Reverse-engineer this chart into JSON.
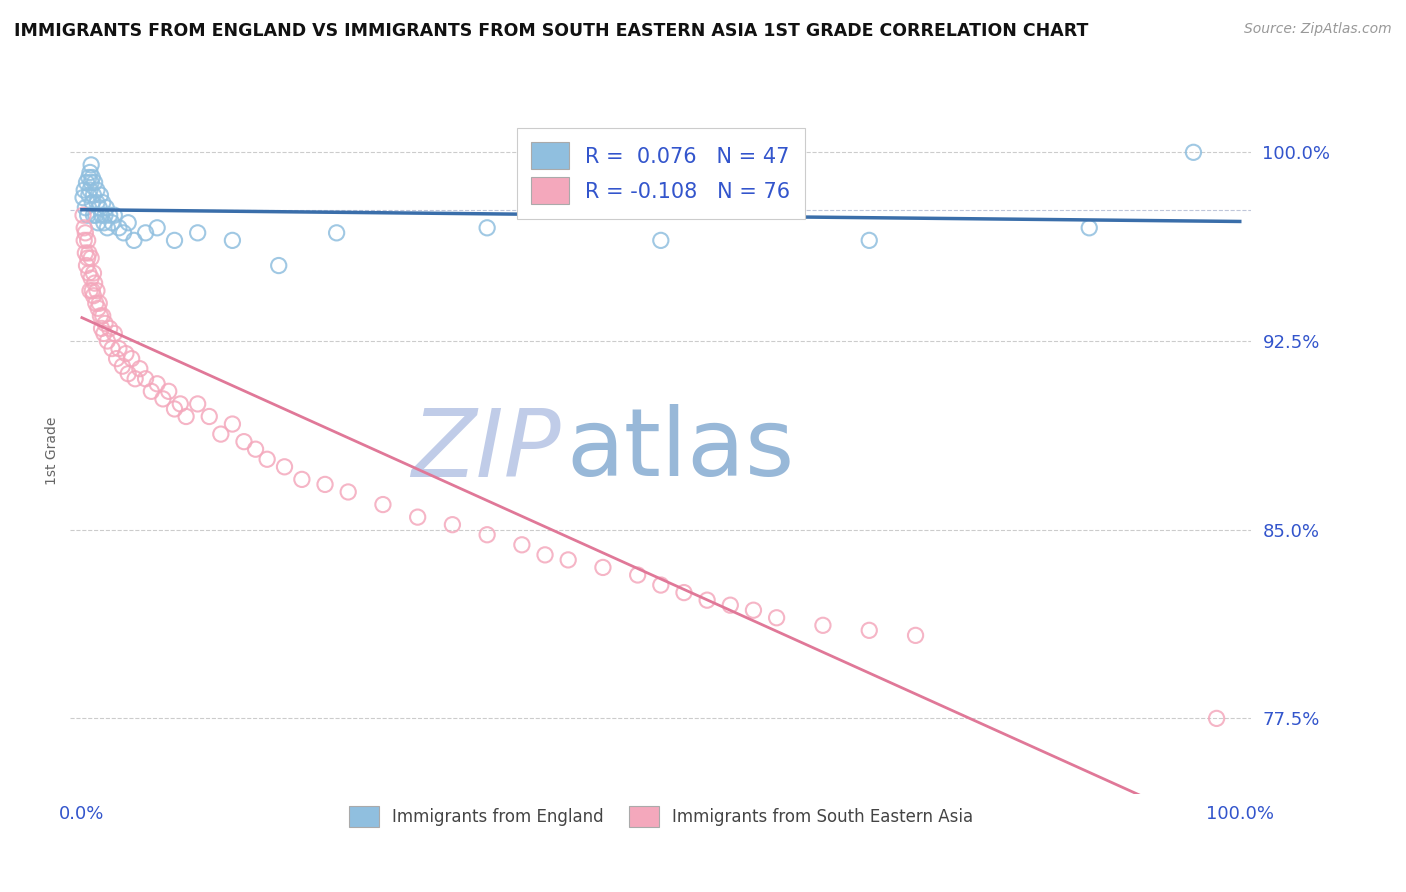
{
  "title": "IMMIGRANTS FROM ENGLAND VS IMMIGRANTS FROM SOUTH EASTERN ASIA 1ST GRADE CORRELATION CHART",
  "source": "Source: ZipAtlas.com",
  "ylabel": "1st Grade",
  "ylim": [
    0.745,
    1.018
  ],
  "xlim": [
    -0.01,
    1.01
  ],
  "yticks": [
    0.775,
    0.85,
    0.925,
    1.0
  ],
  "ytick_labels": [
    "77.5%",
    "85.0%",
    "92.5%",
    "100.0%"
  ],
  "england_R": 0.076,
  "england_N": 47,
  "sea_R": -0.108,
  "sea_N": 76,
  "england_color": "#90bfdf",
  "sea_color": "#f4a8bc",
  "trend_line_color_england": "#3a6eaa",
  "trend_line_color_sea": "#e07898",
  "background_color": "#ffffff",
  "grid_color": "#cccccc",
  "title_color": "#111111",
  "axis_label_color": "#3355cc",
  "watermark_color_zip": "#c0cce8",
  "watermark_color_atlas": "#98b8d8",
  "england_scatter_x": [
    0.001,
    0.002,
    0.003,
    0.004,
    0.005,
    0.006,
    0.006,
    0.007,
    0.007,
    0.008,
    0.008,
    0.009,
    0.009,
    0.01,
    0.01,
    0.011,
    0.012,
    0.013,
    0.013,
    0.014,
    0.015,
    0.016,
    0.017,
    0.018,
    0.019,
    0.02,
    0.021,
    0.022,
    0.024,
    0.026,
    0.028,
    0.032,
    0.036,
    0.04,
    0.045,
    0.055,
    0.065,
    0.08,
    0.1,
    0.13,
    0.17,
    0.22,
    0.35,
    0.5,
    0.68,
    0.87,
    0.96
  ],
  "england_scatter_y": [
    0.982,
    0.985,
    0.978,
    0.988,
    0.975,
    0.99,
    0.983,
    0.992,
    0.985,
    0.995,
    0.988,
    0.98,
    0.99,
    0.975,
    0.983,
    0.988,
    0.975,
    0.98,
    0.985,
    0.972,
    0.978,
    0.983,
    0.975,
    0.98,
    0.972,
    0.975,
    0.978,
    0.97,
    0.975,
    0.972,
    0.975,
    0.97,
    0.968,
    0.972,
    0.965,
    0.968,
    0.97,
    0.965,
    0.968,
    0.965,
    0.955,
    0.968,
    0.97,
    0.965,
    0.965,
    0.97,
    1.0
  ],
  "sea_scatter_x": [
    0.001,
    0.002,
    0.002,
    0.003,
    0.003,
    0.004,
    0.005,
    0.005,
    0.006,
    0.006,
    0.007,
    0.008,
    0.008,
    0.009,
    0.01,
    0.01,
    0.011,
    0.012,
    0.013,
    0.014,
    0.015,
    0.016,
    0.017,
    0.018,
    0.019,
    0.02,
    0.022,
    0.024,
    0.026,
    0.028,
    0.03,
    0.032,
    0.035,
    0.038,
    0.04,
    0.043,
    0.046,
    0.05,
    0.055,
    0.06,
    0.065,
    0.07,
    0.075,
    0.08,
    0.085,
    0.09,
    0.1,
    0.11,
    0.12,
    0.13,
    0.14,
    0.15,
    0.16,
    0.175,
    0.19,
    0.21,
    0.23,
    0.26,
    0.29,
    0.32,
    0.35,
    0.38,
    0.4,
    0.42,
    0.45,
    0.48,
    0.5,
    0.52,
    0.54,
    0.56,
    0.58,
    0.6,
    0.64,
    0.68,
    0.72,
    0.98
  ],
  "sea_scatter_y": [
    0.975,
    0.97,
    0.965,
    0.96,
    0.968,
    0.955,
    0.965,
    0.958,
    0.952,
    0.96,
    0.945,
    0.958,
    0.95,
    0.945,
    0.952,
    0.943,
    0.948,
    0.94,
    0.945,
    0.938,
    0.94,
    0.935,
    0.93,
    0.935,
    0.928,
    0.932,
    0.925,
    0.93,
    0.922,
    0.928,
    0.918,
    0.922,
    0.915,
    0.92,
    0.912,
    0.918,
    0.91,
    0.914,
    0.91,
    0.905,
    0.908,
    0.902,
    0.905,
    0.898,
    0.9,
    0.895,
    0.9,
    0.895,
    0.888,
    0.892,
    0.885,
    0.882,
    0.878,
    0.875,
    0.87,
    0.868,
    0.865,
    0.86,
    0.855,
    0.852,
    0.848,
    0.844,
    0.84,
    0.838,
    0.835,
    0.832,
    0.828,
    0.825,
    0.822,
    0.82,
    0.818,
    0.815,
    0.812,
    0.81,
    0.808,
    0.775
  ]
}
